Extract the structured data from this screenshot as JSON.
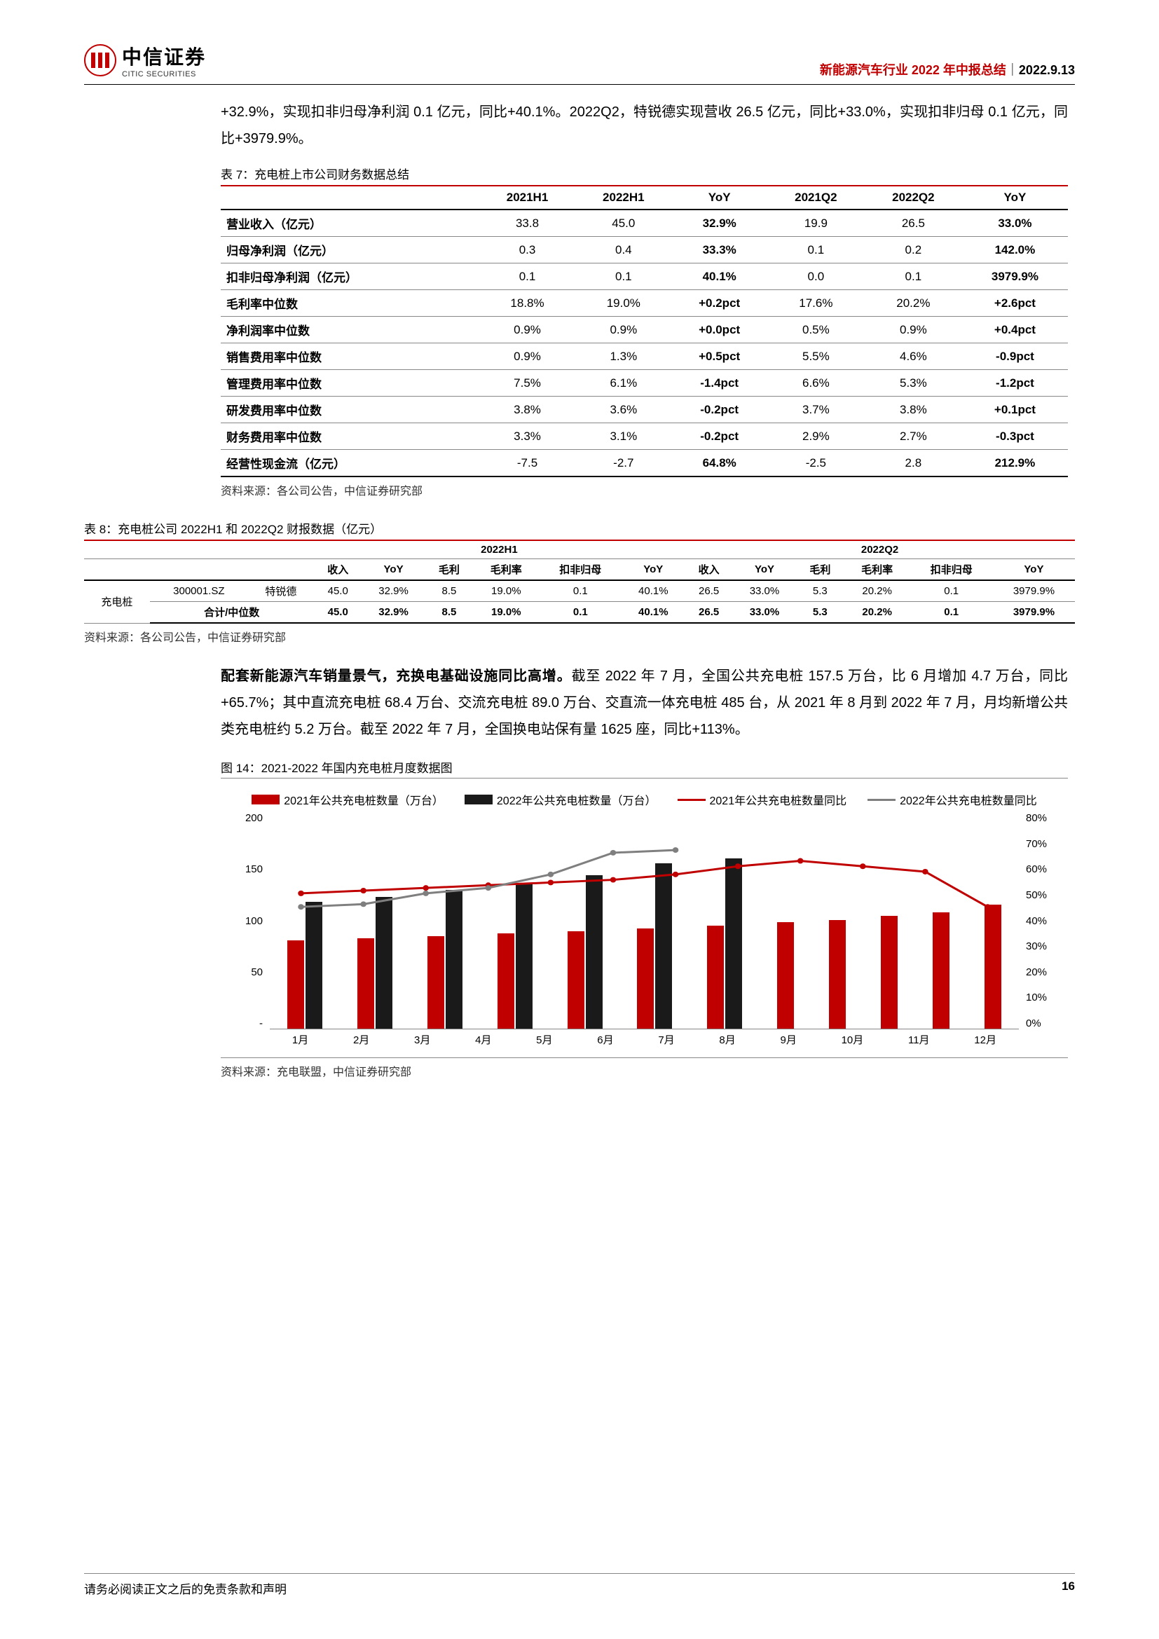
{
  "colors": {
    "accent_red": "#c00000",
    "chart_red": "#c00000",
    "chart_black": "#1a1a1a",
    "chart_line_red": "#c00000",
    "chart_line_gray": "#7f7f7f",
    "grid": "#888888",
    "text": "#000000",
    "bg": "#ffffff"
  },
  "header": {
    "logo_cn": "中信证券",
    "logo_en": "CITIC SECURITIES",
    "title_red": "新能源汽车行业 2022 年中报总结",
    "sep": "｜",
    "date": "2022.9.13"
  },
  "intro": "+32.9%，实现扣非归母净利润 0.1 亿元，同比+40.1%。2022Q2，特锐德实现营收 26.5 亿元，同比+33.0%，实现扣非归母 0.1 亿元，同比+3979.9%。",
  "table7": {
    "caption": "表 7：充电桩上市公司财务数据总结",
    "source": "资料来源：各公司公告，中信证券研究部",
    "columns": [
      "",
      "2021H1",
      "2022H1",
      "YoY",
      "2021Q2",
      "2022Q2",
      "YoY"
    ],
    "rows": [
      [
        "营业收入（亿元）",
        "33.8",
        "45.0",
        "32.9%",
        "19.9",
        "26.5",
        "33.0%"
      ],
      [
        "归母净利润（亿元）",
        "0.3",
        "0.4",
        "33.3%",
        "0.1",
        "0.2",
        "142.0%"
      ],
      [
        "扣非归母净利润（亿元）",
        "0.1",
        "0.1",
        "40.1%",
        "0.0",
        "0.1",
        "3979.9%"
      ],
      [
        "毛利率中位数",
        "18.8%",
        "19.0%",
        "+0.2pct",
        "17.6%",
        "20.2%",
        "+2.6pct"
      ],
      [
        "净利润率中位数",
        "0.9%",
        "0.9%",
        "+0.0pct",
        "0.5%",
        "0.9%",
        "+0.4pct"
      ],
      [
        "销售费用率中位数",
        "0.9%",
        "1.3%",
        "+0.5pct",
        "5.5%",
        "4.6%",
        "-0.9pct"
      ],
      [
        "管理费用率中位数",
        "7.5%",
        "6.1%",
        "-1.4pct",
        "6.6%",
        "5.3%",
        "-1.2pct"
      ],
      [
        "研发费用率中位数",
        "3.8%",
        "3.6%",
        "-0.2pct",
        "3.7%",
        "3.8%",
        "+0.1pct"
      ],
      [
        "财务费用率中位数",
        "3.3%",
        "3.1%",
        "-0.2pct",
        "2.9%",
        "2.7%",
        "-0.3pct"
      ],
      [
        "经营性现金流（亿元）",
        "-7.5",
        "-2.7",
        "64.8%",
        "-2.5",
        "2.8",
        "212.9%"
      ]
    ]
  },
  "table8": {
    "caption": "表 8：充电桩公司 2022H1 和 2022Q2 财报数据（亿元）",
    "source": "资料来源：各公司公告，中信证券研究部",
    "group_headers": [
      "2022H1",
      "2022Q2"
    ],
    "sub_headers": [
      "收入",
      "YoY",
      "毛利",
      "毛利率",
      "扣非归母",
      "YoY",
      "收入",
      "YoY",
      "毛利",
      "毛利率",
      "扣非归母",
      "YoY"
    ],
    "category": "充电桩",
    "row": [
      "300001.SZ",
      "特锐德",
      "45.0",
      "32.9%",
      "8.5",
      "19.0%",
      "0.1",
      "40.1%",
      "26.5",
      "33.0%",
      "5.3",
      "20.2%",
      "0.1",
      "3979.9%"
    ],
    "sum_label": "合计/中位数",
    "sum_row": [
      "45.0",
      "32.9%",
      "8.5",
      "19.0%",
      "0.1",
      "40.1%",
      "26.5",
      "33.0%",
      "5.3",
      "20.2%",
      "0.1",
      "3979.9%"
    ]
  },
  "para2_bold": "配套新能源汽车销量景气，充换电基础设施同比高增。",
  "para2": "截至 2022 年 7 月，全国公共充电桩 157.5 万台，比 6 月增加 4.7 万台，同比+65.7%；其中直流充电桩 68.4 万台、交流充电桩 89.0 万台、交直流一体充电桩 485 台，从 2021 年 8 月到 2022 年 7 月，月均新增公共类充电桩约 5.2 万台。截至 2022 年 7 月，全国换电站保有量 1625 座，同比+113%。",
  "figure14": {
    "caption": "图 14：2021-2022 年国内充电桩月度数据图",
    "source": "资料来源：充电联盟，中信证券研究部",
    "legend": {
      "bar_red": "2021年公共充电桩数量（万台）",
      "bar_black": "2022年公共充电桩数量（万台）",
      "line_red": "2021年公共充电桩数量同比",
      "line_gray": "2022年公共充电桩数量同比"
    },
    "y_left": {
      "min": 0,
      "max": 200,
      "ticks": [
        "200",
        "150",
        "100",
        "50",
        "-"
      ]
    },
    "y_right": {
      "min": 0,
      "max": 80,
      "ticks": [
        "80%",
        "70%",
        "60%",
        "50%",
        "40%",
        "30%",
        "20%",
        "10%",
        "0%"
      ]
    },
    "x_labels": [
      "1月",
      "2月",
      "3月",
      "4月",
      "5月",
      "6月",
      "7月",
      "8月",
      "9月",
      "10月",
      "11月",
      "12月"
    ],
    "bars_2021": [
      81,
      83,
      85,
      88,
      90,
      92,
      95,
      98,
      100,
      104,
      107,
      114
    ],
    "bars_2022": [
      117,
      121,
      128,
      133,
      141,
      152,
      157,
      0,
      0,
      0,
      0,
      0
    ],
    "line_2021_pct": [
      50,
      51,
      52,
      53,
      54,
      55,
      57,
      60,
      62,
      60,
      58,
      45
    ],
    "line_2022_pct": [
      45,
      46,
      50,
      52,
      57,
      65,
      66,
      0,
      0,
      0,
      0,
      0
    ]
  },
  "footer": {
    "disclaimer": "请务必阅读正文之后的免责条款和声明",
    "page": "16"
  }
}
